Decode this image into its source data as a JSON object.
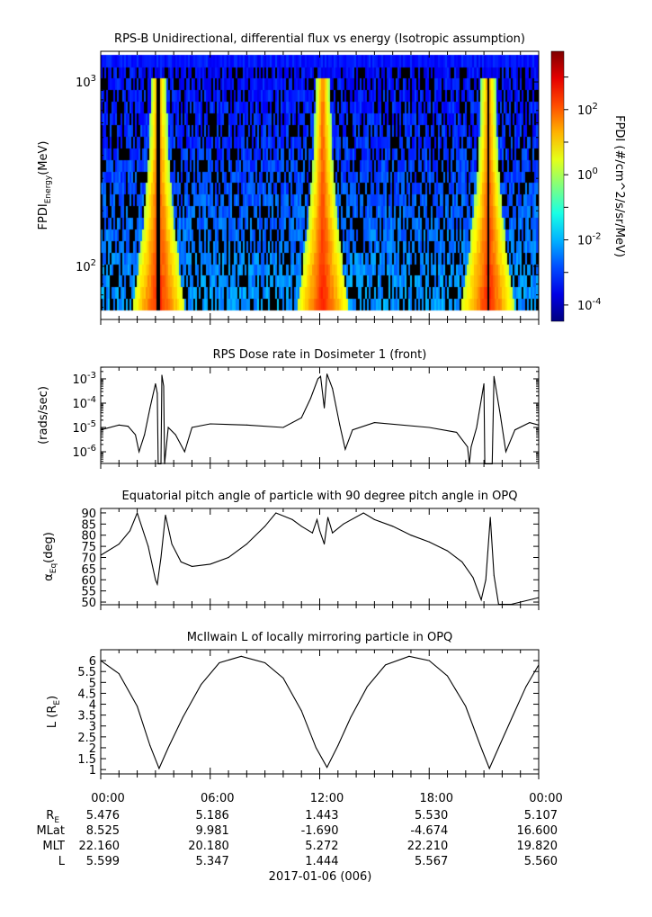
{
  "chart_data": [
    {
      "type": "heatmap",
      "title": "RPS-B  Unidirectional, differential flux vs energy (Isotropic assumption)",
      "ylabel": "FPDI",
      "ylabel_sub": "Energy",
      "ylabel_unit": "(MeV)",
      "yscale": "log",
      "ylim": [
        51.5,
        1466
      ],
      "yticks": [
        {
          "value": 100,
          "base": "10",
          "exp": "2"
        },
        {
          "value": 1000,
          "base": "10",
          "exp": "3"
        }
      ],
      "data_energy_range": [
        58,
        1400
      ],
      "belt_pass_hours": [
        3.2,
        12.2,
        21.25
      ],
      "colorbar": {
        "label": "FPDI (#/cm^2/s/sr/MeV)",
        "range_log10": [
          -4.5,
          3.79
        ],
        "ticks": [
          {
            "exp": "2",
            "v": 2
          },
          {
            "exp": "0",
            "v": 0
          },
          {
            "exp": "-2",
            "v": -2
          },
          {
            "exp": "-4",
            "v": -4
          }
        ]
      }
    },
    {
      "type": "line",
      "title": "RPS  Dose rate in Dosimeter 1 (front)",
      "ylabel": "(rads/sec)",
      "yscale": "log",
      "ylim_log10": [
        -6.48,
        -2.52
      ],
      "yticks": [
        {
          "exp": "-3",
          "v": -3
        },
        {
          "exp": "-4",
          "v": -4
        },
        {
          "exp": "-5",
          "v": -5
        },
        {
          "exp": "-6",
          "v": -6
        }
      ],
      "x": [
        0,
        1,
        1.5,
        1.9,
        2.1,
        2.4,
        2.7,
        3.0,
        3.1,
        3.15,
        3.3,
        3.35,
        3.45,
        3.5,
        3.7,
        4.1,
        4.6,
        5.0,
        6,
        8,
        10,
        11,
        11.5,
        11.9,
        12.05,
        12.25,
        12.4,
        12.7,
        13.1,
        13.4,
        13.8,
        15,
        18,
        19.5,
        20.1,
        20.2,
        20.3,
        20.6,
        21.0,
        21.05,
        21.45,
        21.55,
        21.9,
        22.2,
        22.7,
        23.5,
        24
      ],
      "log10_values": [
        -5.1,
        -4.9,
        -4.95,
        -5.3,
        -6.0,
        -5.3,
        -4.2,
        -3.2,
        -3.6,
        -6.5,
        -6.5,
        -2.85,
        -3.3,
        -6.5,
        -5.0,
        -5.3,
        -6.0,
        -5.0,
        -4.85,
        -4.9,
        -5.0,
        -4.6,
        -3.8,
        -3.0,
        -2.9,
        -4.2,
        -2.8,
        -3.4,
        -4.9,
        -5.9,
        -5.1,
        -4.8,
        -5.0,
        -5.2,
        -5.8,
        -6.5,
        -5.8,
        -5.0,
        -3.2,
        -6.5,
        -6.5,
        -2.9,
        -4.5,
        -6.0,
        -5.1,
        -4.8,
        -4.9
      ]
    },
    {
      "type": "line",
      "title": "Equatorial pitch angle of particle with 90 degree pitch angle in OPQ",
      "ylabel": "α",
      "ylabel_sub": "Eq",
      "ylabel_unit": "(deg)",
      "ylim": [
        48.8,
        92
      ],
      "yticks": [
        90,
        85,
        80,
        75,
        70,
        65,
        60,
        55,
        50
      ],
      "x": [
        0,
        1,
        1.6,
        2.0,
        2.6,
        3.0,
        3.1,
        3.3,
        3.55,
        3.9,
        4.4,
        5,
        6,
        7,
        8,
        9,
        9.6,
        10.5,
        11,
        11.6,
        11.85,
        12.0,
        12.25,
        12.45,
        12.7,
        13.3,
        14.4,
        15,
        16,
        17,
        18,
        19,
        19.8,
        20.4,
        20.85,
        21.1,
        21.35,
        21.55,
        21.8,
        22.5,
        24
      ],
      "values": [
        71,
        76,
        82,
        90,
        75,
        60,
        58,
        70,
        89,
        76,
        68,
        66,
        67,
        70,
        76,
        84,
        90,
        87,
        84,
        81,
        87,
        82,
        76,
        88,
        81,
        85,
        90,
        87,
        84,
        80,
        77,
        73,
        68,
        61,
        51,
        60,
        88,
        62,
        49,
        49,
        52
      ]
    },
    {
      "type": "line",
      "title": "McIlwain L of locally mirroring particle in OPQ",
      "ylabel": "L (R",
      "ylabel_sub": "E",
      "ylabel_end": ")",
      "ylim": [
        0.8,
        6.5
      ],
      "yticks": [
        6,
        5.5,
        5,
        4.5,
        4,
        3.5,
        3,
        2.5,
        2,
        1.5,
        1
      ],
      "x": [
        0,
        1,
        2,
        2.7,
        3.2,
        3.7,
        4.5,
        5.5,
        6.5,
        7.7,
        9,
        10,
        11,
        11.8,
        12.4,
        13.0,
        13.7,
        14.6,
        15.6,
        16.9,
        18,
        19,
        20,
        20.8,
        21.3,
        21.8,
        22.6,
        23.3,
        24
      ],
      "values": [
        6.0,
        5.4,
        3.9,
        2.1,
        1.05,
        2.0,
        3.4,
        4.9,
        5.9,
        6.2,
        5.9,
        5.2,
        3.7,
        2.0,
        1.1,
        2.1,
        3.4,
        4.8,
        5.8,
        6.2,
        6.0,
        5.3,
        3.9,
        2.1,
        1.05,
        2.0,
        3.5,
        4.8,
        5.8
      ]
    }
  ],
  "xaxis": {
    "range_hours": [
      0,
      24
    ],
    "tick_labels": [
      "00:00",
      "06:00",
      "12:00",
      "18:00",
      "00:00"
    ],
    "date": "2017-01-06 (006)"
  },
  "ephemeris": [
    {
      "label": "R",
      "sub": "E",
      "values": [
        "5.476",
        "5.186",
        "1.443",
        "5.530",
        "5.107"
      ]
    },
    {
      "label": "MLat",
      "sub": "",
      "values": [
        "8.525",
        "9.981",
        "-1.690",
        "-4.674",
        "16.600"
      ]
    },
    {
      "label": "MLT",
      "sub": "",
      "values": [
        "22.160",
        "20.180",
        "5.272",
        "22.210",
        "19.820"
      ]
    },
    {
      "label": "L",
      "sub": "",
      "values": [
        "5.599",
        "5.347",
        "1.444",
        "5.567",
        "5.560"
      ]
    }
  ]
}
